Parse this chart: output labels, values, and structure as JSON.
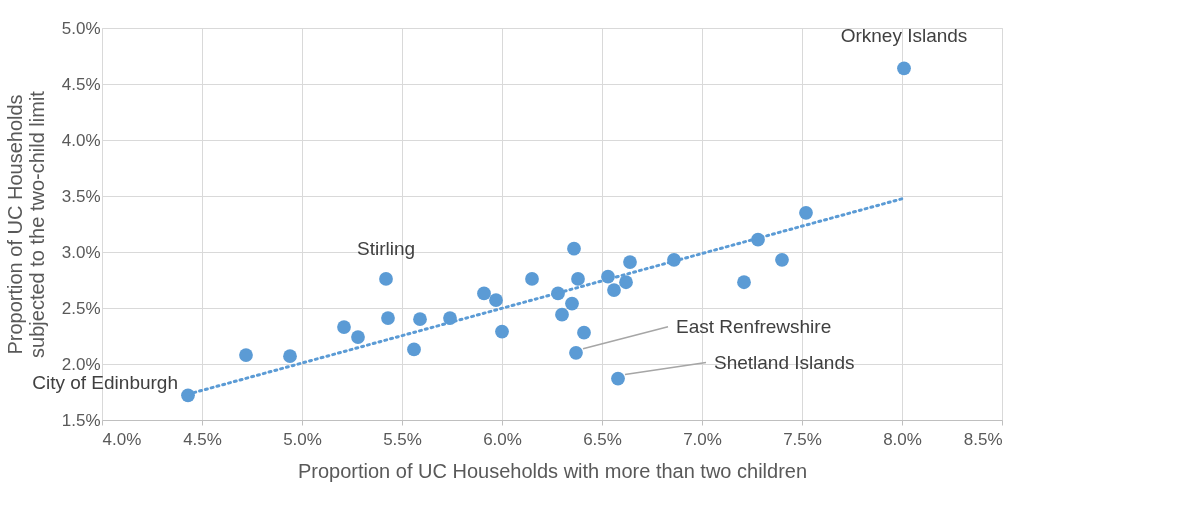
{
  "chart_data": {
    "type": "scatter",
    "xlabel": "Proportion of UC Households with more than two children",
    "ylabel": "Proportion of UC Households subjected to the two-child limit",
    "x": [
      4.43,
      4.72,
      4.94,
      5.21,
      5.28,
      5.42,
      5.43,
      5.56,
      5.59,
      5.74,
      5.91,
      5.97,
      6.0,
      6.15,
      6.28,
      6.3,
      6.35,
      6.36,
      6.37,
      6.38,
      6.41,
      6.53,
      6.56,
      6.62,
      6.58,
      6.64,
      6.86,
      7.21,
      7.28,
      7.4,
      7.52,
      8.01
    ],
    "series": [
      {
        "type": "scatter",
        "color": "#5b9bd5",
        "marker": "circle",
        "values": [
          1.72,
          2.08,
          2.07,
          2.33,
          2.24,
          2.76,
          2.41,
          2.13,
          2.4,
          2.41,
          2.63,
          2.57,
          2.29,
          2.76,
          2.63,
          2.44,
          2.54,
          3.03,
          2.1,
          2.76,
          2.28,
          2.78,
          2.66,
          2.73,
          1.87,
          2.91,
          2.93,
          2.73,
          3.11,
          2.93,
          3.35,
          4.64
        ]
      },
      {
        "type": "line",
        "color": "#5b9bd5",
        "line_style": "dotted",
        "x": [
          4.43,
          8.01
        ],
        "values": [
          1.73,
          3.48
        ]
      }
    ],
    "xlim": [
      4.0,
      8.5
    ],
    "ylim": [
      1.5,
      5.0
    ],
    "xticks": [
      {
        "value": 4.0,
        "label": "4.0%"
      },
      {
        "value": 4.5,
        "label": "4.5%"
      },
      {
        "value": 5.0,
        "label": "5.0%"
      },
      {
        "value": 5.5,
        "label": "5.5%"
      },
      {
        "value": 6.0,
        "label": "6.0%"
      },
      {
        "value": 6.5,
        "label": "6.5%"
      },
      {
        "value": 7.0,
        "label": "7.0%"
      },
      {
        "value": 7.5,
        "label": "7.5%"
      },
      {
        "value": 8.0,
        "label": "8.0%"
      },
      {
        "value": 8.5,
        "label": "8.5%"
      }
    ],
    "yticks": [
      {
        "value": 1.5,
        "label": "1.5%"
      },
      {
        "value": 2.0,
        "label": "2.0%"
      },
      {
        "value": 2.5,
        "label": "2.5%"
      },
      {
        "value": 3.0,
        "label": "3.0%"
      },
      {
        "value": 3.5,
        "label": "3.5%"
      },
      {
        "value": 4.0,
        "label": "4.0%"
      },
      {
        "value": 4.5,
        "label": "4.5%"
      },
      {
        "value": 5.0,
        "label": "5.0%"
      }
    ],
    "annotations": [
      {
        "text": "City of Edinburgh",
        "x": 4.43,
        "y": 1.72
      },
      {
        "text": "Stirling",
        "x": 5.42,
        "y": 2.76
      },
      {
        "text": "Orkney Islands",
        "x": 8.01,
        "y": 4.64
      },
      {
        "text": "East Renfrewshire",
        "x": 6.37,
        "y": 2.1
      },
      {
        "text": "Shetland Islands",
        "x": 6.58,
        "y": 1.87
      }
    ],
    "grid": true
  }
}
